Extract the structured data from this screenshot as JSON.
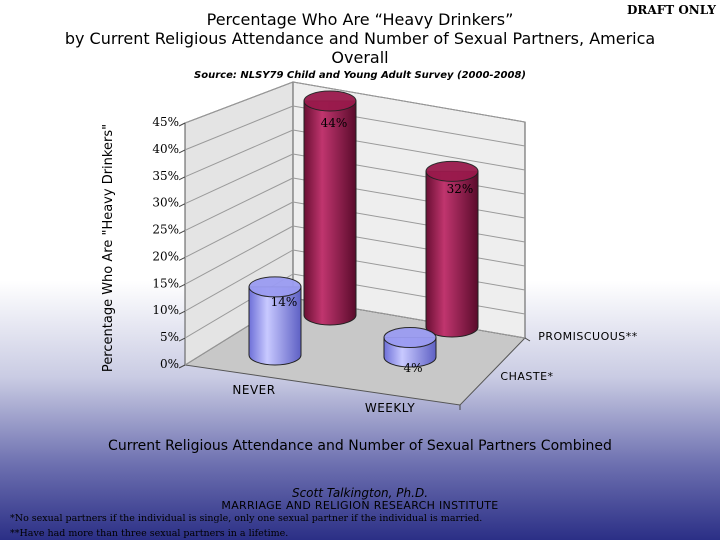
{
  "draft_label": "DRAFT ONLY",
  "title_lines": [
    "Percentage Who Are “Heavy Drinkers”",
    "by Current Religious Attendance and Number of Sexual Partners, America",
    "Overall"
  ],
  "source": "Source: NLSY79 Child and Young Adult Survey (2000-2008)",
  "author": "Scott Talkington, Ph.D.",
  "institute": "MARRIAGE AND RELIGION RESEARCH INSTITUTE",
  "footnotes": [
    "*No sexual partners if the individual is single, only one sexual partner if the individual is married.",
    "**Have had more than three sexual partners in a lifetime."
  ],
  "colors": {
    "chaste": "#9b9cf2",
    "promiscuous": "#9a1a4c",
    "wall": "#e4e4e4",
    "floor": "#c8c8c8"
  },
  "chart_data": {
    "type": "bar",
    "style": "3d-cylinder",
    "title": "Percentage Who Are “Heavy Drinkers”",
    "xlabel": "Current Religious Attendance and Number of Sexual Partners Combined",
    "ylabel": "Percentage Who Are \"Heavy Drinkers\"",
    "categories": [
      "NEVER",
      "WEEKLY"
    ],
    "depth_categories": [
      "CHASTE*",
      "PROMISCUOUS**"
    ],
    "ylim": [
      0,
      45
    ],
    "yticks": [
      "0%",
      "5%",
      "10%",
      "15%",
      "20%",
      "25%",
      "30%",
      "35%",
      "40%",
      "45%"
    ],
    "series": [
      {
        "name": "CHASTE*",
        "values": [
          14,
          4
        ],
        "labels": [
          "14%",
          "4%"
        ]
      },
      {
        "name": "PROMISCUOUS**",
        "values": [
          44,
          32
        ],
        "labels": [
          "44%",
          "32%"
        ]
      }
    ]
  }
}
